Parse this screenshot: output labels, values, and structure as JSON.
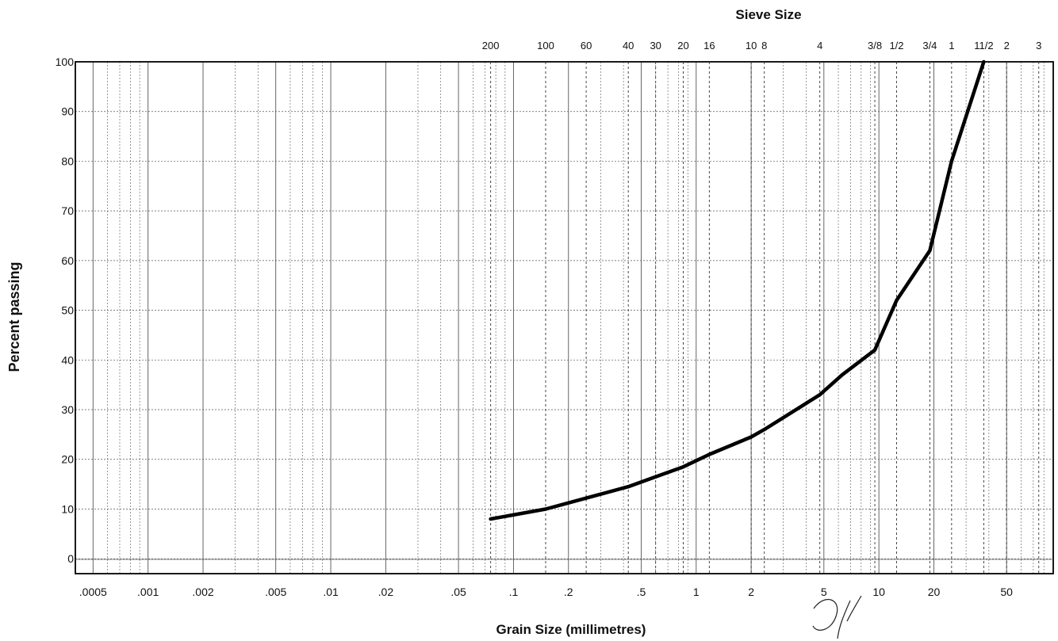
{
  "chart_data": {
    "type": "line",
    "title": "Sieve Size",
    "xlabel": "Grain Size (millimetres)",
    "ylabel": "Percent passing",
    "x_scale": "log",
    "xlim": [
      0.0004,
      90
    ],
    "ylim": [
      -3,
      100
    ],
    "grid": true,
    "x_tick_labels": [
      {
        "label": ".0005",
        "value": 0.0005
      },
      {
        "label": ".001",
        "value": 0.001
      },
      {
        "label": ".002",
        "value": 0.002
      },
      {
        "label": ".005",
        "value": 0.005
      },
      {
        "label": ".01",
        "value": 0.01
      },
      {
        "label": ".02",
        "value": 0.02
      },
      {
        "label": ".05",
        "value": 0.05
      },
      {
        "label": ".1",
        "value": 0.1
      },
      {
        "label": ".2",
        "value": 0.2
      },
      {
        "label": ".5",
        "value": 0.5
      },
      {
        "label": "1",
        "value": 1
      },
      {
        "label": "2",
        "value": 2
      },
      {
        "label": "5",
        "value": 5
      },
      {
        "label": "10",
        "value": 10
      },
      {
        "label": "20",
        "value": 20
      },
      {
        "label": "50",
        "value": 50
      }
    ],
    "y_ticks": [
      0,
      10,
      20,
      30,
      40,
      50,
      60,
      70,
      80,
      90,
      100
    ],
    "sieve_sizes": [
      {
        "label": "200",
        "size_mm": 0.075
      },
      {
        "label": "100",
        "size_mm": 0.15
      },
      {
        "label": "60",
        "size_mm": 0.25
      },
      {
        "label": "40",
        "size_mm": 0.425
      },
      {
        "label": "30",
        "size_mm": 0.6
      },
      {
        "label": "20",
        "size_mm": 0.85
      },
      {
        "label": "16",
        "size_mm": 1.18
      },
      {
        "label": "10",
        "size_mm": 2.0
      },
      {
        "label": "8",
        "size_mm": 2.36
      },
      {
        "label": "4",
        "size_mm": 4.75
      },
      {
        "label": "3/8",
        "size_mm": 9.5
      },
      {
        "label": "1/2",
        "size_mm": 12.5
      },
      {
        "label": "3/4",
        "size_mm": 19
      },
      {
        "label": "1",
        "size_mm": 25
      },
      {
        "label": "11/2",
        "size_mm": 37.5
      },
      {
        "label": "2",
        "size_mm": 50
      },
      {
        "label": "3",
        "size_mm": 75
      }
    ],
    "series": [
      {
        "x": [
          0.075,
          0.15,
          0.3,
          0.425,
          0.6,
          0.85,
          1.18,
          2.0,
          2.36,
          4.75,
          6.3,
          9.5,
          12.5,
          19,
          25,
          37.5
        ],
        "y": [
          8,
          10,
          13,
          14.5,
          16.5,
          18.5,
          21,
          24.5,
          26,
          33,
          37,
          42,
          52,
          62,
          80,
          100
        ]
      }
    ]
  },
  "colors": {
    "line": "#000000",
    "grid": "#555555",
    "frame": "#000000"
  }
}
